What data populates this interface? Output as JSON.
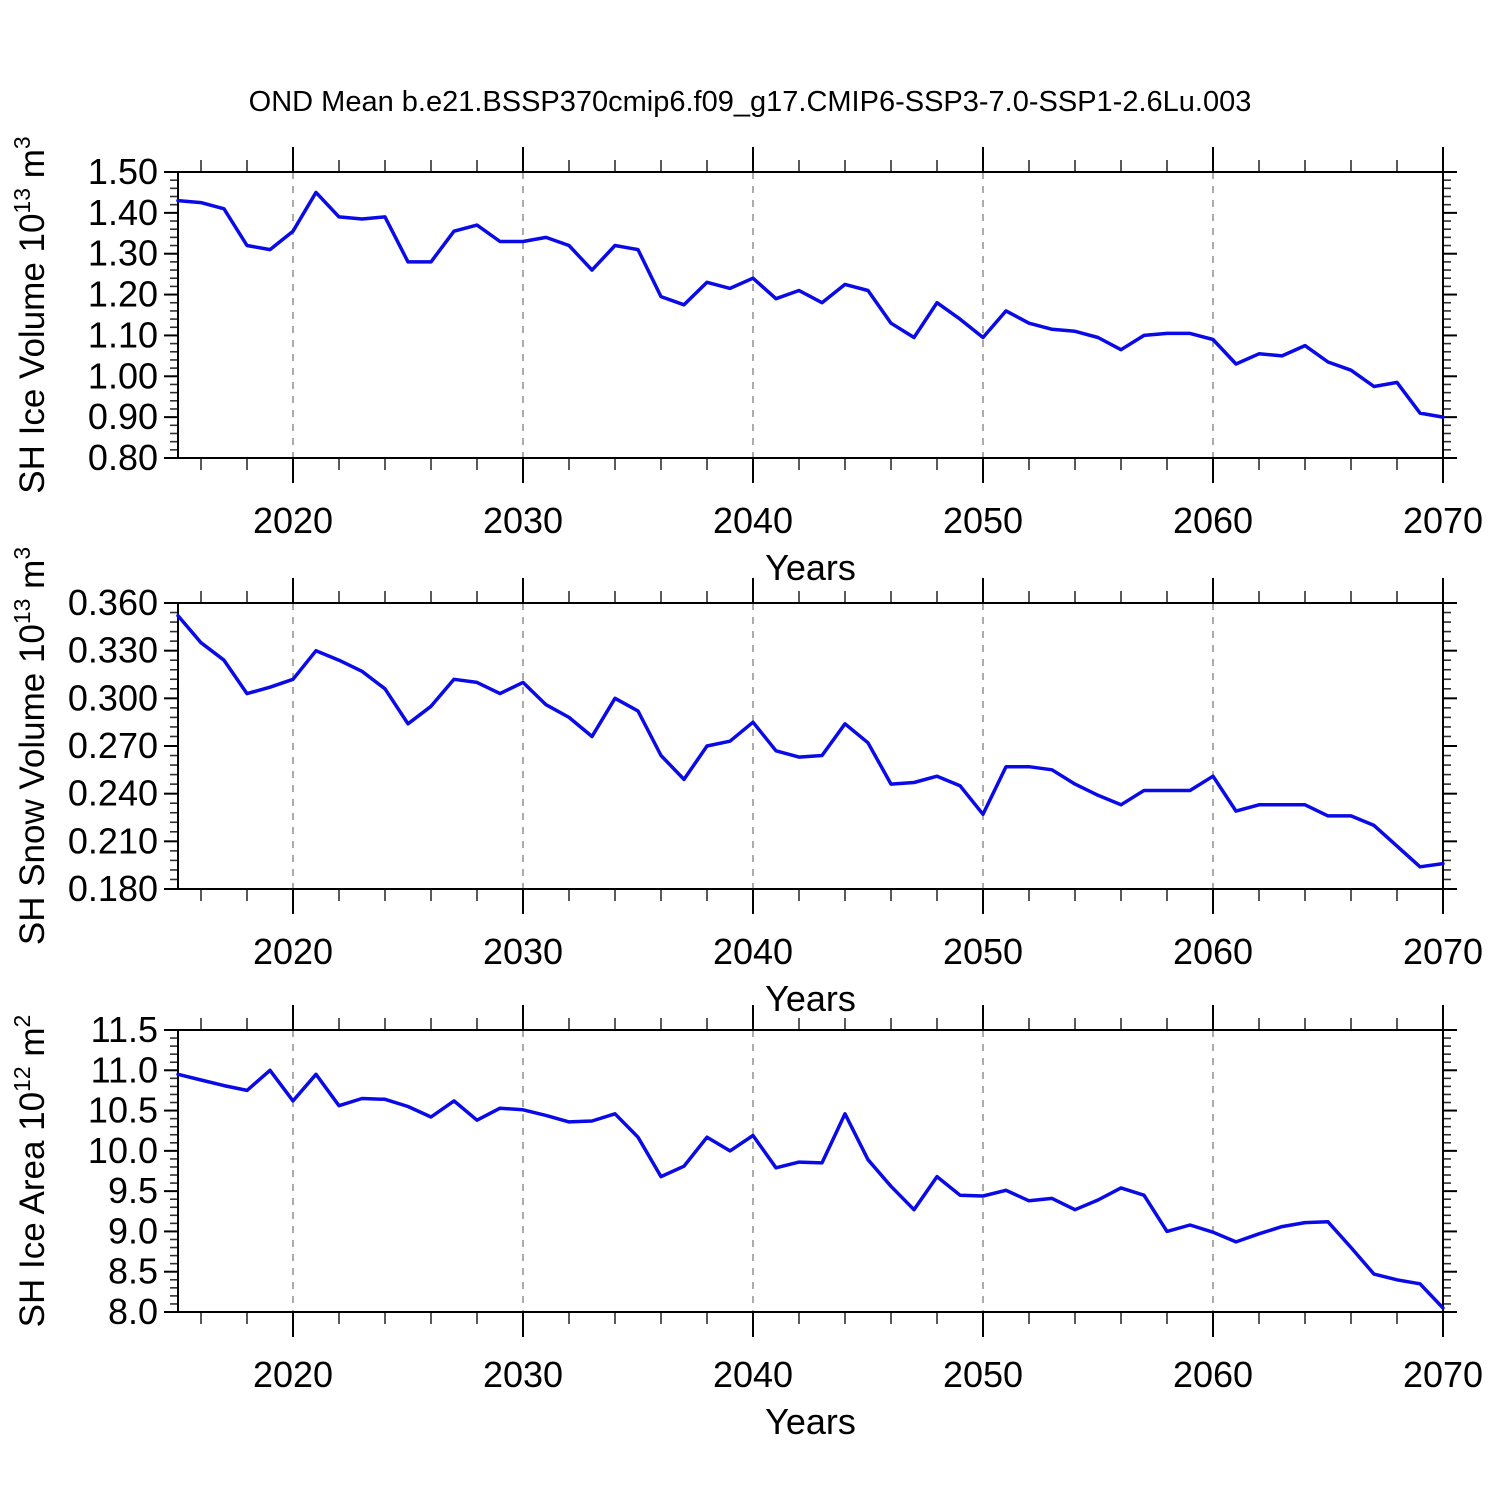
{
  "title": "OND Mean b.e21.BSSP370cmip6.f09_g17.CMIP6-SSP3-7.0-SSP1-2.6Lu.003",
  "colors": {
    "line": "#0a0ae8",
    "axis": "#000000",
    "minor_tick": "#303030",
    "gridline": "#909090",
    "background": "#ffffff"
  },
  "x_axis": {
    "label": "Years",
    "start": 2015,
    "end": 2070,
    "minor_tick_step": 2,
    "major_ticks": [
      2020,
      2030,
      2040,
      2050,
      2060,
      2070
    ],
    "major_tick_labels": [
      "2020",
      "2030",
      "2040",
      "2050",
      "2060",
      "2070"
    ],
    "gridlines": [
      2020,
      2030,
      2040,
      2050,
      2060
    ],
    "years": [
      2015,
      2016,
      2017,
      2018,
      2019,
      2020,
      2021,
      2022,
      2023,
      2024,
      2025,
      2026,
      2027,
      2028,
      2029,
      2030,
      2031,
      2032,
      2033,
      2034,
      2035,
      2036,
      2037,
      2038,
      2039,
      2040,
      2041,
      2042,
      2043,
      2044,
      2045,
      2046,
      2047,
      2048,
      2049,
      2050,
      2051,
      2052,
      2053,
      2054,
      2055,
      2056,
      2057,
      2058,
      2059,
      2060,
      2061,
      2062,
      2063,
      2064,
      2065,
      2066,
      2067,
      2068,
      2069,
      2070
    ]
  },
  "chart_data": [
    {
      "type": "line",
      "name": "sh-ice-volume",
      "ylabel": "SH Ice Volume 10^{13} m^{3}",
      "ylim": [
        0.8,
        1.5
      ],
      "ytick_step": 0.1,
      "yminor_step": 0.02,
      "ytick_labels": [
        "1.50",
        "1.40",
        "1.30",
        "1.20",
        "1.10",
        "1.00",
        "0.90",
        "0.80"
      ],
      "values": [
        1.43,
        1.425,
        1.41,
        1.32,
        1.31,
        1.355,
        1.45,
        1.39,
        1.385,
        1.39,
        1.28,
        1.28,
        1.355,
        1.37,
        1.33,
        1.33,
        1.34,
        1.32,
        1.26,
        1.32,
        1.31,
        1.195,
        1.175,
        1.23,
        1.215,
        1.24,
        1.19,
        1.21,
        1.18,
        1.225,
        1.21,
        1.13,
        1.095,
        1.18,
        1.14,
        1.095,
        1.16,
        1.13,
        1.115,
        1.11,
        1.095,
        1.065,
        1.1,
        1.105,
        1.105,
        1.09,
        1.03,
        1.055,
        1.05,
        1.075,
        1.035,
        1.015,
        0.975,
        0.985,
        0.91,
        0.9
      ]
    },
    {
      "type": "line",
      "name": "sh-snow-volume",
      "ylabel": "SH Snow Volume 10^{13} m^{3}",
      "ylim": [
        0.18,
        0.36
      ],
      "ytick_step": 0.03,
      "yminor_step": 0.006,
      "ytick_labels": [
        "0.360",
        "0.330",
        "0.300",
        "0.270",
        "0.240",
        "0.210",
        "0.180"
      ],
      "values": [
        0.352,
        0.335,
        0.324,
        0.303,
        0.307,
        0.312,
        0.33,
        0.324,
        0.317,
        0.306,
        0.284,
        0.295,
        0.312,
        0.31,
        0.303,
        0.31,
        0.296,
        0.288,
        0.276,
        0.3,
        0.292,
        0.264,
        0.249,
        0.27,
        0.273,
        0.285,
        0.267,
        0.263,
        0.264,
        0.284,
        0.272,
        0.246,
        0.247,
        0.251,
        0.245,
        0.227,
        0.257,
        0.257,
        0.255,
        0.246,
        0.239,
        0.233,
        0.242,
        0.242,
        0.242,
        0.251,
        0.229,
        0.233,
        0.233,
        0.233,
        0.226,
        0.226,
        0.22,
        0.207,
        0.194,
        0.196
      ]
    },
    {
      "type": "line",
      "name": "sh-ice-area",
      "ylabel": "SH Ice Area 10^{12} m^{2}",
      "ylim": [
        8.0,
        11.5
      ],
      "ytick_step": 0.5,
      "yminor_step": 0.1,
      "ytick_labels": [
        "11.5",
        "11.0",
        "10.5",
        "10.0",
        "9.5",
        "9.0",
        "8.5",
        "8.0"
      ],
      "values": [
        10.95,
        10.88,
        10.81,
        10.75,
        11.0,
        10.62,
        10.95,
        10.56,
        10.65,
        10.64,
        10.55,
        10.42,
        10.62,
        10.38,
        10.53,
        10.51,
        10.44,
        10.36,
        10.37,
        10.46,
        10.17,
        9.68,
        9.81,
        10.17,
        10.0,
        10.19,
        9.79,
        9.86,
        9.85,
        10.46,
        9.89,
        9.56,
        9.27,
        9.68,
        9.45,
        9.44,
        9.51,
        9.38,
        9.41,
        9.27,
        9.39,
        9.54,
        9.45,
        9.0,
        9.08,
        8.99,
        8.87,
        8.97,
        9.06,
        9.11,
        9.12,
        8.8,
        8.47,
        8.4,
        8.35,
        8.05
      ]
    }
  ]
}
